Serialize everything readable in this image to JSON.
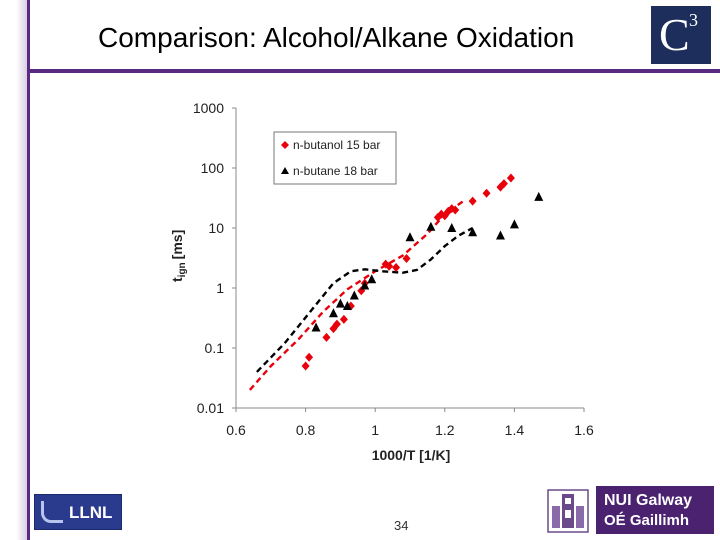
{
  "slide": {
    "title": "Comparison: Alcohol/Alkane Oxidation",
    "page_number": "34",
    "c3_logo": {
      "letter": "C",
      "superscript": "3",
      "bg": "#1d2d5c"
    },
    "llnl_logo": {
      "text": "LLNL",
      "bg": "#2a3a8c"
    },
    "nui_logo": {
      "line1": "NUI Galway",
      "line2": "OÉ Gaillimh",
      "bg": "#4a2270"
    },
    "accent": "#5a2a82"
  },
  "chart_data": {
    "type": "scatter",
    "title": "",
    "xlabel": "1000/T [1/K]",
    "ylabel_main": "t",
    "ylabel_sub": "ign",
    "ylabel_unit": "[ms]",
    "xlim": [
      0.6,
      1.6
    ],
    "ylim": [
      0.01,
      1000
    ],
    "yscale": "log",
    "x_ticks": [
      "0.6",
      "0.8",
      "1",
      "1.2",
      "1.4",
      "1.6"
    ],
    "x_tick_values": [
      0.6,
      0.8,
      1.0,
      1.2,
      1.4,
      1.6
    ],
    "y_ticks": [
      "0.01",
      "0.1",
      "1",
      "10",
      "100",
      "1000"
    ],
    "y_tick_values": [
      0.01,
      0.1,
      1,
      10,
      100,
      1000
    ],
    "legend_position": "top-left",
    "series": [
      {
        "name": "n-butanol 15 bar",
        "marker": "diamond",
        "color": "#e8000b",
        "x": [
          0.8,
          0.81,
          0.86,
          0.88,
          0.89,
          0.91,
          0.93,
          0.96,
          0.97,
          1.03,
          1.04,
          1.06,
          1.09,
          1.18,
          1.19,
          1.2,
          1.21,
          1.22,
          1.23,
          1.28,
          1.32,
          1.36,
          1.37,
          1.39
        ],
        "y": [
          0.05,
          0.07,
          0.15,
          0.21,
          0.25,
          0.3,
          0.5,
          0.9,
          1.2,
          2.5,
          2.3,
          2.2,
          3.1,
          15,
          17,
          16,
          19,
          21,
          20,
          28,
          38,
          48,
          55,
          68
        ]
      },
      {
        "name": "n-butane 18 bar",
        "marker": "triangle",
        "color": "#000000",
        "x": [
          0.83,
          0.88,
          0.9,
          0.92,
          0.94,
          0.97,
          0.99,
          1.1,
          1.16,
          1.22,
          1.28,
          1.36,
          1.4,
          1.47
        ],
        "y": [
          0.22,
          0.38,
          0.55,
          0.5,
          0.75,
          1.1,
          1.4,
          7.0,
          10.5,
          10.0,
          8.5,
          7.5,
          11.5,
          33
        ]
      }
    ],
    "model_curves": [
      {
        "name": "n-butanol model",
        "style": "dashed",
        "color": "#e8000b",
        "x": [
          0.64,
          0.7,
          0.78,
          0.85,
          0.92,
          1.0,
          1.08,
          1.15,
          1.2,
          1.26
        ],
        "y": [
          0.02,
          0.05,
          0.14,
          0.4,
          0.95,
          1.9,
          3.5,
          8.0,
          17.0,
          30.0
        ]
      },
      {
        "name": "n-butane model",
        "style": "dashed",
        "color": "#000000",
        "x": [
          0.66,
          0.74,
          0.82,
          0.88,
          0.93,
          0.97,
          1.02,
          1.08,
          1.12,
          1.16,
          1.2,
          1.24,
          1.28
        ],
        "y": [
          0.04,
          0.12,
          0.45,
          1.2,
          1.9,
          2.05,
          1.9,
          1.8,
          2.0,
          3.0,
          5.0,
          7.5,
          10.0
        ]
      }
    ]
  }
}
